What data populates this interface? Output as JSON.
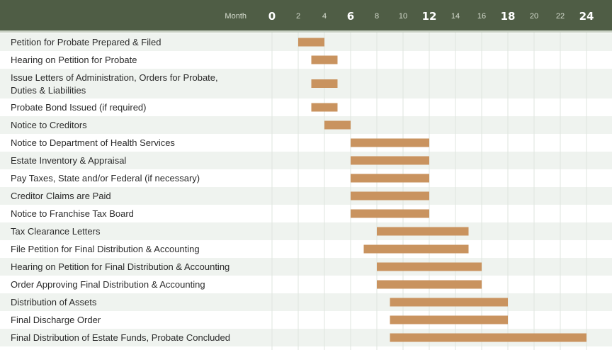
{
  "colors": {
    "header_bg": "#4f5d45",
    "row_alt": "#eff3ef",
    "row_base": "#ffffff",
    "bar": "#c9935f",
    "grid": "#dfe5df"
  },
  "chart_data": {
    "type": "bar",
    "orientation": "horizontal-gantt",
    "axis_label": "Month",
    "xlim": [
      0,
      24
    ],
    "ticks": [
      0,
      2,
      4,
      6,
      8,
      10,
      12,
      14,
      16,
      18,
      20,
      22,
      24
    ],
    "major_ticks": [
      0,
      6,
      12,
      18,
      24
    ],
    "grid": true,
    "tasks": [
      {
        "label": "Petition for Probate Prepared & Filed",
        "start": 2,
        "end": 4
      },
      {
        "label": "Hearing on Petition for Probate",
        "start": 3,
        "end": 5
      },
      {
        "label": "Issue Letters of Administration, Orders for Probate,",
        "label2": "Duties & Liabilities",
        "start": 3,
        "end": 5
      },
      {
        "label": "Probate Bond Issued (if required)",
        "start": 3,
        "end": 5
      },
      {
        "label": "Notice to Creditors",
        "start": 4,
        "end": 6
      },
      {
        "label": "Notice to Department of Health Services",
        "start": 6,
        "end": 12
      },
      {
        "label": "Estate Inventory & Appraisal",
        "start": 6,
        "end": 12
      },
      {
        "label": "Pay Taxes, State and/or Federal (if necessary)",
        "start": 6,
        "end": 12
      },
      {
        "label": "Creditor Claims are Paid",
        "start": 6,
        "end": 12
      },
      {
        "label": "Notice to Franchise Tax Board",
        "start": 6,
        "end": 12
      },
      {
        "label": "Tax Clearance Letters",
        "start": 8,
        "end": 15
      },
      {
        "label": "File Petition for Final Distribution & Accounting",
        "start": 7,
        "end": 15
      },
      {
        "label": "Hearing on Petition for Final Distribution & Accounting",
        "start": 8,
        "end": 16
      },
      {
        "label": "Order Approving Final Distribution & Accounting",
        "start": 8,
        "end": 16
      },
      {
        "label": "Distribution of Assets",
        "start": 9,
        "end": 18
      },
      {
        "label": "Final Discharge Order",
        "start": 9,
        "end": 18
      },
      {
        "label": "Final Distribution of Estate Funds, Probate Concluded",
        "start": 9,
        "end": 24
      }
    ]
  }
}
